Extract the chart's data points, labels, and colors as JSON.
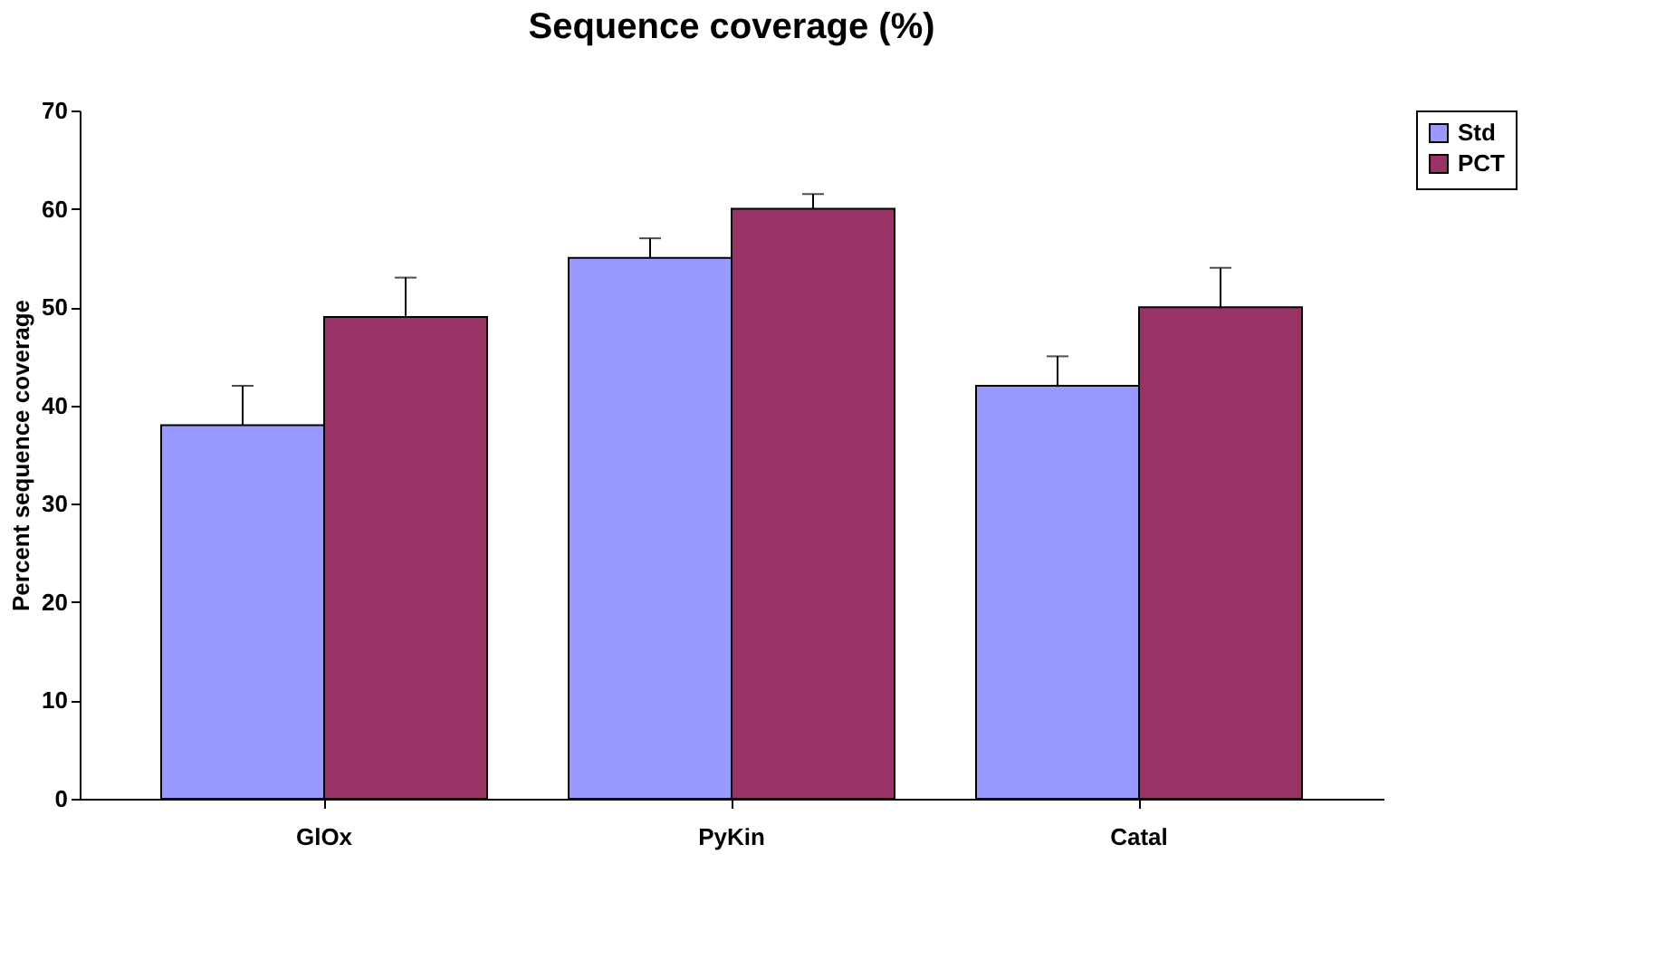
{
  "chart_data": {
    "type": "bar",
    "title": "Sequence coverage (%)",
    "ylabel": "Percent sequence coverage",
    "categories": [
      "GlOx",
      "PyKin",
      "Catal"
    ],
    "series": [
      {
        "name": "Std",
        "color": "#9999ff",
        "values": [
          38,
          55,
          42
        ],
        "errors": [
          [
            38,
            42
          ],
          [
            55,
            57
          ],
          [
            42,
            45
          ]
        ]
      },
      {
        "name": "PCT",
        "color": "#993366",
        "values": [
          49,
          60,
          50
        ],
        "errors": [
          [
            49,
            53
          ],
          [
            60,
            61.5
          ],
          [
            50,
            54
          ]
        ]
      }
    ],
    "ylim": [
      0,
      70
    ],
    "yticks": [
      0,
      10,
      20,
      30,
      40,
      50,
      60,
      70
    ],
    "grid": false,
    "legend": "right"
  }
}
